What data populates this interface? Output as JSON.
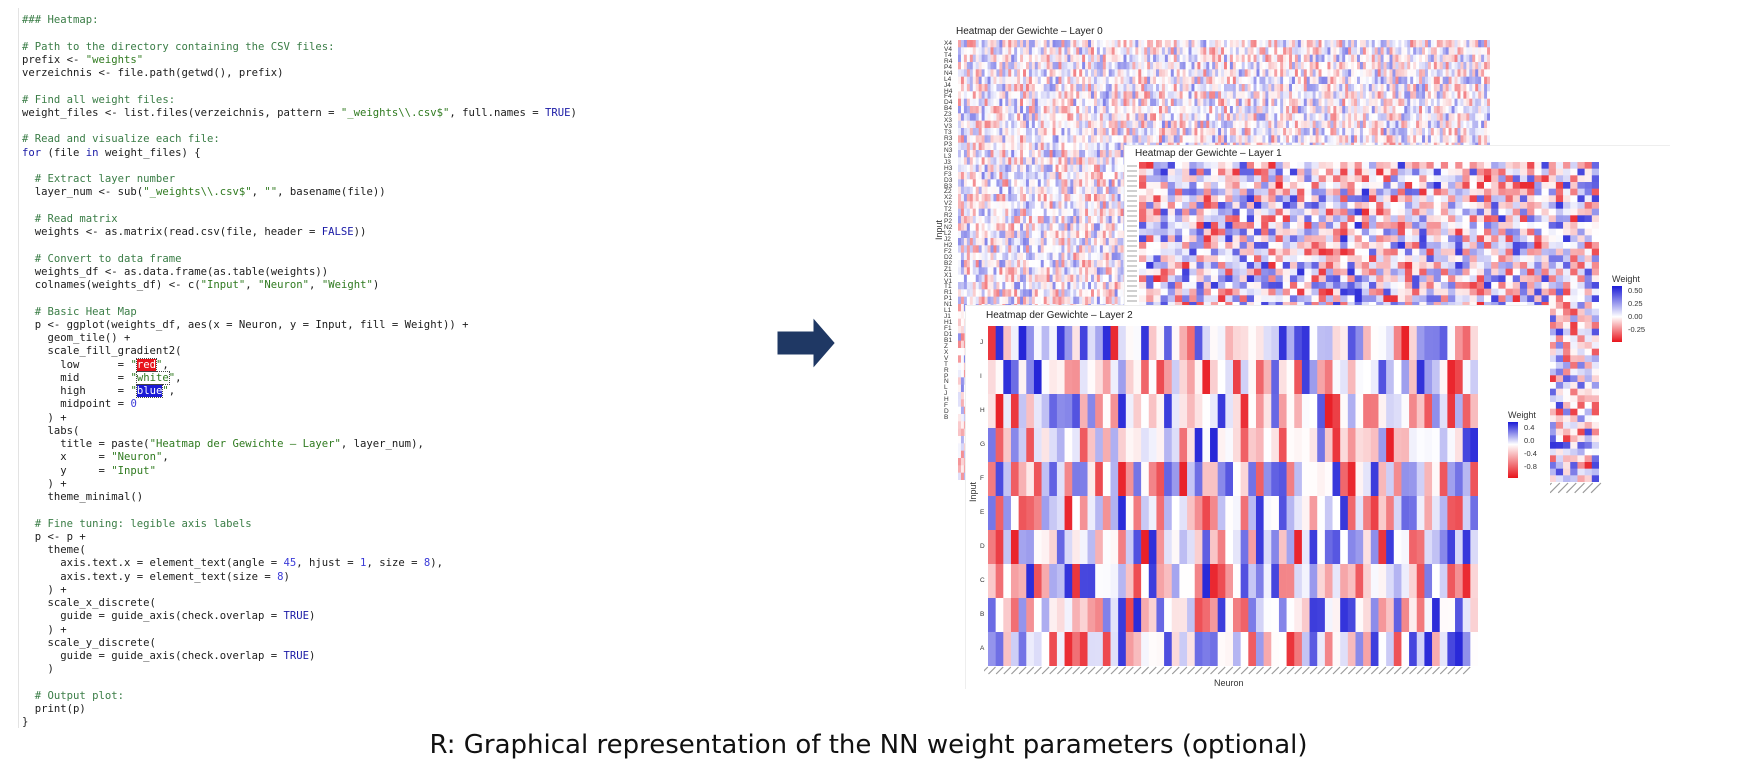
{
  "code": {
    "lines": [
      [
        {
          "t": "### Heatmap:",
          "c": "cmt"
        }
      ],
      [],
      [
        {
          "t": "# Path to the directory containing the CSV files:",
          "c": "cmt"
        }
      ],
      [
        {
          "t": "prefix <- "
        },
        {
          "t": "\"weights\"",
          "c": "str"
        }
      ],
      [
        {
          "t": "verzeichnis <- file.path(getwd(), prefix)"
        }
      ],
      [],
      [
        {
          "t": "# Find all weight files:",
          "c": "cmt"
        }
      ],
      [
        {
          "t": "weight_files <- list.files(verzeichnis, pattern = "
        },
        {
          "t": "\"_weights\\\\.csv$\"",
          "c": "str"
        },
        {
          "t": ", full.names = "
        },
        {
          "t": "TRUE",
          "c": "kw"
        },
        {
          "t": ")"
        }
      ],
      [],
      [
        {
          "t": "# Read and visualize each file:",
          "c": "cmt"
        }
      ],
      [
        {
          "t": "for",
          "c": "kw"
        },
        {
          "t": " (file "
        },
        {
          "t": "in",
          "c": "kw"
        },
        {
          "t": " weight_files) {"
        }
      ],
      [],
      [
        {
          "t": "  # Extract layer number",
          "c": "cmt"
        }
      ],
      [
        {
          "t": "  layer_num <- sub("
        },
        {
          "t": "\"_weights\\\\.csv$\"",
          "c": "str"
        },
        {
          "t": ", "
        },
        {
          "t": "\"\"",
          "c": "str"
        },
        {
          "t": ", basename(file))"
        }
      ],
      [],
      [
        {
          "t": "  # Read matrix",
          "c": "cmt"
        }
      ],
      [
        {
          "t": "  weights <- as.matrix(read.csv(file, header = "
        },
        {
          "t": "FALSE",
          "c": "kw"
        },
        {
          "t": "))"
        }
      ],
      [],
      [
        {
          "t": "  # Convert to data frame",
          "c": "cmt"
        }
      ],
      [
        {
          "t": "  weights_df <- as.data.frame(as.table(weights))"
        }
      ],
      [
        {
          "t": "  colnames(weights_df) <- c("
        },
        {
          "t": "\"Input\"",
          "c": "str"
        },
        {
          "t": ", "
        },
        {
          "t": "\"Neuron\"",
          "c": "str"
        },
        {
          "t": ", "
        },
        {
          "t": "\"Weight\"",
          "c": "str"
        },
        {
          "t": ")"
        }
      ],
      [],
      [
        {
          "t": "  # Basic Heat Map",
          "c": "cmt"
        }
      ],
      [
        {
          "t": "  p <- ggplot(weights_df, aes(x = Neuron, y = Input, fill = Weight)) +"
        }
      ],
      [
        {
          "t": "    geom_tile() +"
        }
      ],
      [
        {
          "t": "    scale_fill_gradient2("
        }
      ],
      [
        {
          "t": "      low      = "
        },
        {
          "t": "\"",
          "c": "str"
        },
        {
          "t": "red",
          "c": "hl-red"
        },
        {
          "t": "\"",
          "c": "str"
        },
        {
          "t": ","
        }
      ],
      [
        {
          "t": "      mid      = "
        },
        {
          "t": "\"",
          "c": "str"
        },
        {
          "t": "white",
          "c": "hl-white"
        },
        {
          "t": "\"",
          "c": "str"
        },
        {
          "t": ","
        }
      ],
      [
        {
          "t": "      high     = "
        },
        {
          "t": "\"",
          "c": "str"
        },
        {
          "t": "blue",
          "c": "hl-blue"
        },
        {
          "t": "\"",
          "c": "str"
        },
        {
          "t": ","
        }
      ],
      [
        {
          "t": "      midpoint = "
        },
        {
          "t": "0",
          "c": "num"
        }
      ],
      [
        {
          "t": "    ) +"
        }
      ],
      [
        {
          "t": "    labs("
        }
      ],
      [
        {
          "t": "      title = paste("
        },
        {
          "t": "\"Heatmap der Gewichte – Layer\"",
          "c": "str"
        },
        {
          "t": ", layer_num),"
        }
      ],
      [
        {
          "t": "      x     = "
        },
        {
          "t": "\"Neuron\"",
          "c": "str"
        },
        {
          "t": ","
        }
      ],
      [
        {
          "t": "      y     = "
        },
        {
          "t": "\"Input\"",
          "c": "str"
        }
      ],
      [
        {
          "t": "    ) +"
        }
      ],
      [
        {
          "t": "    theme_minimal()"
        }
      ],
      [],
      [
        {
          "t": "  # Fine tuning: legible axis labels",
          "c": "cmt"
        }
      ],
      [
        {
          "t": "  p <- p +"
        }
      ],
      [
        {
          "t": "    theme("
        }
      ],
      [
        {
          "t": "      axis.text.x = element_text(angle = "
        },
        {
          "t": "45",
          "c": "num"
        },
        {
          "t": ", hjust = "
        },
        {
          "t": "1",
          "c": "num"
        },
        {
          "t": ", size = "
        },
        {
          "t": "8",
          "c": "num"
        },
        {
          "t": "),"
        }
      ],
      [
        {
          "t": "      axis.text.y = element_text(size = "
        },
        {
          "t": "8",
          "c": "num"
        },
        {
          "t": ")"
        }
      ],
      [
        {
          "t": "    ) +"
        }
      ],
      [
        {
          "t": "    scale_x_discrete("
        }
      ],
      [
        {
          "t": "      guide = guide_axis(check.overlap = "
        },
        {
          "t": "TRUE",
          "c": "kw"
        },
        {
          "t": ")"
        }
      ],
      [
        {
          "t": "    ) +"
        }
      ],
      [
        {
          "t": "    scale_y_discrete("
        }
      ],
      [
        {
          "t": "      guide = guide_axis(check.overlap = "
        },
        {
          "t": "TRUE",
          "c": "kw"
        },
        {
          "t": ")"
        }
      ],
      [
        {
          "t": "    )"
        }
      ],
      [],
      [
        {
          "t": "  # Output plot:",
          "c": "cmt"
        }
      ],
      [
        {
          "t": "  print(p)"
        }
      ],
      [
        {
          "t": "}"
        }
      ]
    ]
  },
  "arrow": {
    "icon": "right-arrow-icon",
    "color": "#1f3864"
  },
  "heatmaps": [
    {
      "title": "Heatmap der Gewichte – Layer 0",
      "ylabel": "Input",
      "yticks": [
        "X4",
        "V4",
        "T4",
        "R4",
        "P4",
        "N4",
        "L4",
        "J4",
        "H4",
        "F4",
        "D4",
        "B4",
        "Z3",
        "X3",
        "V3",
        "T3",
        "R3",
        "P3",
        "N3",
        "L3",
        "J3",
        "H3",
        "F3",
        "D3",
        "B3",
        "Z2",
        "X2",
        "V2",
        "T2",
        "R2",
        "P2",
        "N2",
        "L2",
        "J2",
        "H2",
        "F2",
        "D2",
        "B2",
        "Z1",
        "X1",
        "V1",
        "T1",
        "R1",
        "P1",
        "N1",
        "L1",
        "J1",
        "H1",
        "F1",
        "D1",
        "B1",
        "Z",
        "X",
        "V",
        "T",
        "R",
        "P",
        "N",
        "L",
        "J",
        "H",
        "F",
        "D",
        "B"
      ]
    },
    {
      "title": "Heatmap der Gewichte – Layer 1",
      "legend": {
        "title": "Weight",
        "ticks": [
          "0.50",
          "0.25",
          "0.00",
          "-0.25"
        ]
      }
    },
    {
      "title": "Heatmap der Gewichte – Layer 2",
      "ylabel": "Input",
      "xlabel": "Neuron",
      "yticks": [
        "J",
        "I",
        "H",
        "G",
        "F",
        "E",
        "D",
        "C",
        "B",
        "A"
      ],
      "legend": {
        "title": "Weight",
        "ticks": [
          "0.4",
          "0.0",
          "-0.4",
          "-0.8"
        ]
      }
    }
  ],
  "colors": {
    "low": "#e8141c",
    "mid": "#ffffff",
    "high": "#1a1ad6"
  },
  "caption": "R: Graphical representation of the NN weight parameters (optional)"
}
